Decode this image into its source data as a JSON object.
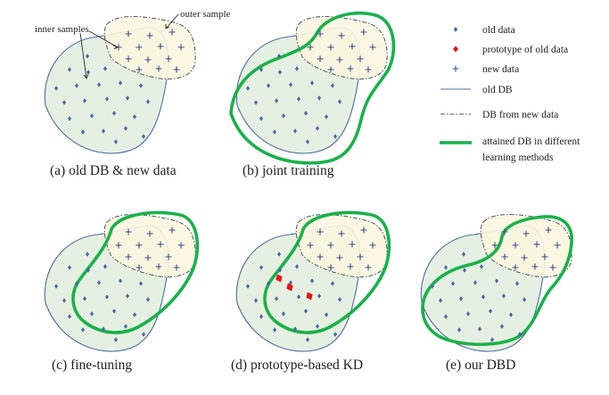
{
  "figure": {
    "panels": [
      {
        "id": "a",
        "caption": "(a) old DB & new data"
      },
      {
        "id": "b",
        "caption": "(b) joint training"
      },
      {
        "id": "c",
        "caption": "(c) fine-tuning"
      },
      {
        "id": "d",
        "caption": "(d) prototype-based KD"
      },
      {
        "id": "e",
        "caption": "(e) our DBD"
      }
    ],
    "annotations": {
      "outer": "outer sample",
      "inner": "inner samples"
    },
    "legend": [
      {
        "symbol": "old-data",
        "label": "old data"
      },
      {
        "symbol": "prototype",
        "label": "prototype of old data"
      },
      {
        "symbol": "new-data",
        "label": "new data"
      },
      {
        "symbol": "old-db-line",
        "label": "old DB"
      },
      {
        "symbol": "new-db-line",
        "label": "DB from new data"
      },
      {
        "symbol": "attained-db-line",
        "label_line1": "attained DB in different",
        "label_line2": "learning methods"
      }
    ],
    "colors": {
      "old_db_fill": "#e4efe0",
      "new_db_fill": "#fbf6e0",
      "old_db_stroke": "#4b6fa0",
      "attained_db": "#19b14a",
      "old_data": "#4567a8",
      "prototype": "#e8101a",
      "new_data": "#3a4f8a"
    }
  }
}
